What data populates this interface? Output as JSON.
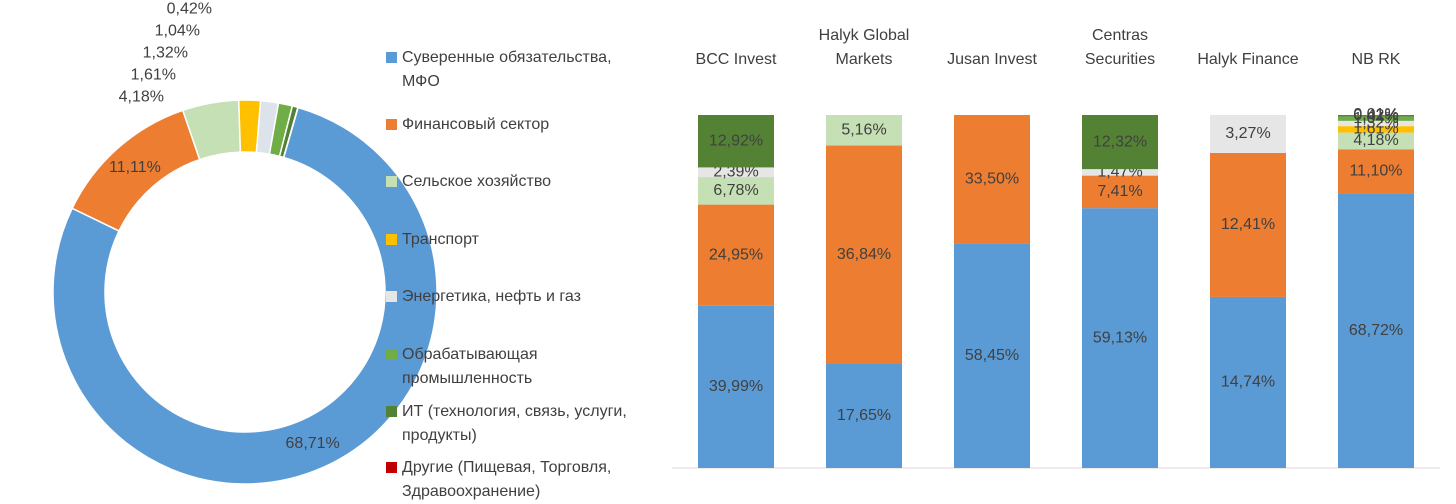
{
  "chart_data": [
    {
      "type": "pie",
      "donut": true,
      "values": [
        68.71,
        11.11,
        4.18,
        1.61,
        1.32,
        1.04,
        0.42,
        0.01
      ],
      "value_labels": [
        "68,71%",
        "11,11%",
        "4,18%",
        "1,61%",
        "1,32%",
        "1,04%",
        "0,42%",
        "0,01%"
      ],
      "colors": [
        "#5b9bd5",
        "#ed7d31",
        "#c5e0b4",
        "#ffc000",
        "#dde3ea",
        "#70ad47",
        "#548235",
        "#c00000"
      ]
    },
    {
      "type": "bar",
      "stacked_percent": true,
      "categories": [
        "BCC Invest",
        "Halyk Global Markets",
        "Jusan Invest",
        "Centras Securities",
        "Halyk Finance",
        "NB RK"
      ],
      "series": [
        {
          "name": "Суверенные обязательства, МФО",
          "color": "#5b9bd5",
          "values": [
            39.99,
            17.65,
            58.45,
            59.13,
            14.74,
            68.72
          ],
          "value_labels": [
            "39,99%",
            "17,65%",
            "58,45%",
            "59,13%",
            "14,74%",
            "68,72%"
          ]
        },
        {
          "name": "Финансовый сектор",
          "color": "#ed7d31",
          "values": [
            24.95,
            36.84,
            33.5,
            7.41,
            12.41,
            11.1
          ],
          "value_labels": [
            "24,95%",
            "36,84%",
            "33,50%",
            "7,41%",
            "12,41%",
            "11,10%"
          ]
        },
        {
          "name": "Сельское хозяйство",
          "color": "#c5e0b4",
          "values": [
            6.78,
            5.16,
            null,
            null,
            null,
            4.18
          ],
          "value_labels": [
            "6,78%",
            "5,16%",
            null,
            null,
            null,
            "4,18%"
          ]
        },
        {
          "name": "Транспорт",
          "color": "#ffc000",
          "values": [
            null,
            null,
            null,
            null,
            null,
            1.61
          ],
          "value_labels": [
            null,
            null,
            null,
            null,
            null,
            "1,61%"
          ]
        },
        {
          "name": "Энергетика, нефть и газ",
          "color": "#e7e6e6",
          "values": [
            2.39,
            null,
            null,
            1.47,
            3.27,
            1.32
          ],
          "value_labels": [
            "2,39%",
            null,
            null,
            "1,47%",
            "3,27%",
            "1,32%"
          ]
        },
        {
          "name": "Обрабатывающая промышленность",
          "color": "#70ad47",
          "values": [
            null,
            null,
            null,
            null,
            null,
            1.04
          ],
          "value_labels": [
            null,
            null,
            null,
            null,
            null,
            "1,04%"
          ]
        },
        {
          "name": "ИТ (технология, связь, услуги, продукты)",
          "color": "#548235",
          "values": [
            12.92,
            null,
            null,
            12.32,
            null,
            0.42
          ],
          "value_labels": [
            "12,92%",
            null,
            null,
            "12,32%",
            null,
            "0,42%"
          ]
        },
        {
          "name": "Другие (Пищевая, Торговля, Здравоохранение)",
          "color": "#c00000",
          "values": [
            null,
            null,
            null,
            null,
            null,
            0.01
          ],
          "value_labels": [
            null,
            null,
            null,
            null,
            null,
            "0,01%"
          ]
        }
      ]
    }
  ]
}
